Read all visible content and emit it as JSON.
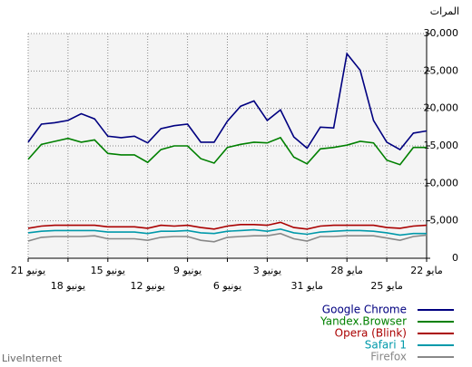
{
  "chart_data": {
    "type": "line",
    "y_label": "المرات",
    "footer": "LiveInternet",
    "x_direction": "right-to-left",
    "grid": true,
    "legend_position": "bottom-right",
    "categories": [
      "22 مايو",
      null,
      null,
      "25 مايو",
      null,
      null,
      "28 مايو",
      null,
      null,
      "31 مايو",
      null,
      null,
      "3 يونيو",
      null,
      null,
      "6 يونيو",
      null,
      null,
      "9 يونيو",
      null,
      null,
      "12 يونيو",
      null,
      null,
      "15 يونيو",
      null,
      null,
      "18 يونيو",
      null,
      null,
      "21 يونيو"
    ],
    "ylim": [
      0,
      30000
    ],
    "yticks": [
      0,
      {
        "value": 5000,
        "label": "5,000"
      },
      {
        "value": 10000,
        "label": "10,000"
      },
      {
        "value": 15000,
        "label": "15,000"
      },
      {
        "value": 20000,
        "label": "20,000"
      },
      {
        "value": 25000,
        "label": "25,000"
      },
      {
        "value": 30000,
        "label": "30,000"
      }
    ],
    "series": [
      {
        "name": "Google Chrome",
        "color": "#000080",
        "values": [
          17000,
          16700,
          14500,
          15500,
          18400,
          25100,
          27300,
          17400,
          17500,
          14700,
          16200,
          19800,
          18400,
          21000,
          20300,
          18300,
          15500,
          15500,
          17900,
          17700,
          17300,
          15400,
          16300,
          16100,
          16300,
          18600,
          19300,
          18400,
          18100,
          17900,
          15500
        ]
      },
      {
        "name": "Yandex.Browser",
        "color": "#008000",
        "values": [
          14800,
          14800,
          12500,
          13100,
          15400,
          15600,
          15100,
          14800,
          14600,
          12600,
          13500,
          16100,
          15400,
          15500,
          15200,
          14800,
          12700,
          13300,
          15000,
          15000,
          14500,
          12800,
          13800,
          13800,
          14000,
          15800,
          15500,
          16000,
          15600,
          15200,
          13200
        ]
      },
      {
        "name": "Opera (Blink)",
        "color": "#aa0000",
        "values": [
          4400,
          4300,
          4000,
          4100,
          4400,
          4400,
          4400,
          4400,
          4300,
          3900,
          4100,
          4800,
          4400,
          4500,
          4500,
          4300,
          3900,
          4100,
          4400,
          4300,
          4400,
          4000,
          4200,
          4200,
          4200,
          4400,
          4400,
          4400,
          4400,
          4300,
          4000
        ]
      },
      {
        "name": "Safari 1",
        "color": "#0099aa",
        "values": [
          3300,
          3300,
          3100,
          3400,
          3600,
          3700,
          3700,
          3600,
          3500,
          3200,
          3400,
          3900,
          3600,
          3800,
          3700,
          3600,
          3300,
          3400,
          3700,
          3600,
          3600,
          3300,
          3500,
          3500,
          3500,
          3700,
          3700,
          3700,
          3700,
          3600,
          3400
        ]
      },
      {
        "name": "Firefox",
        "color": "#888888",
        "values": [
          3100,
          2900,
          2400,
          2700,
          3000,
          3000,
          3000,
          2900,
          2900,
          2300,
          2600,
          3300,
          3000,
          3000,
          2900,
          2800,
          2200,
          2400,
          2900,
          2900,
          2800,
          2400,
          2600,
          2600,
          2600,
          3000,
          2900,
          2900,
          2900,
          2800,
          2300
        ]
      }
    ]
  }
}
